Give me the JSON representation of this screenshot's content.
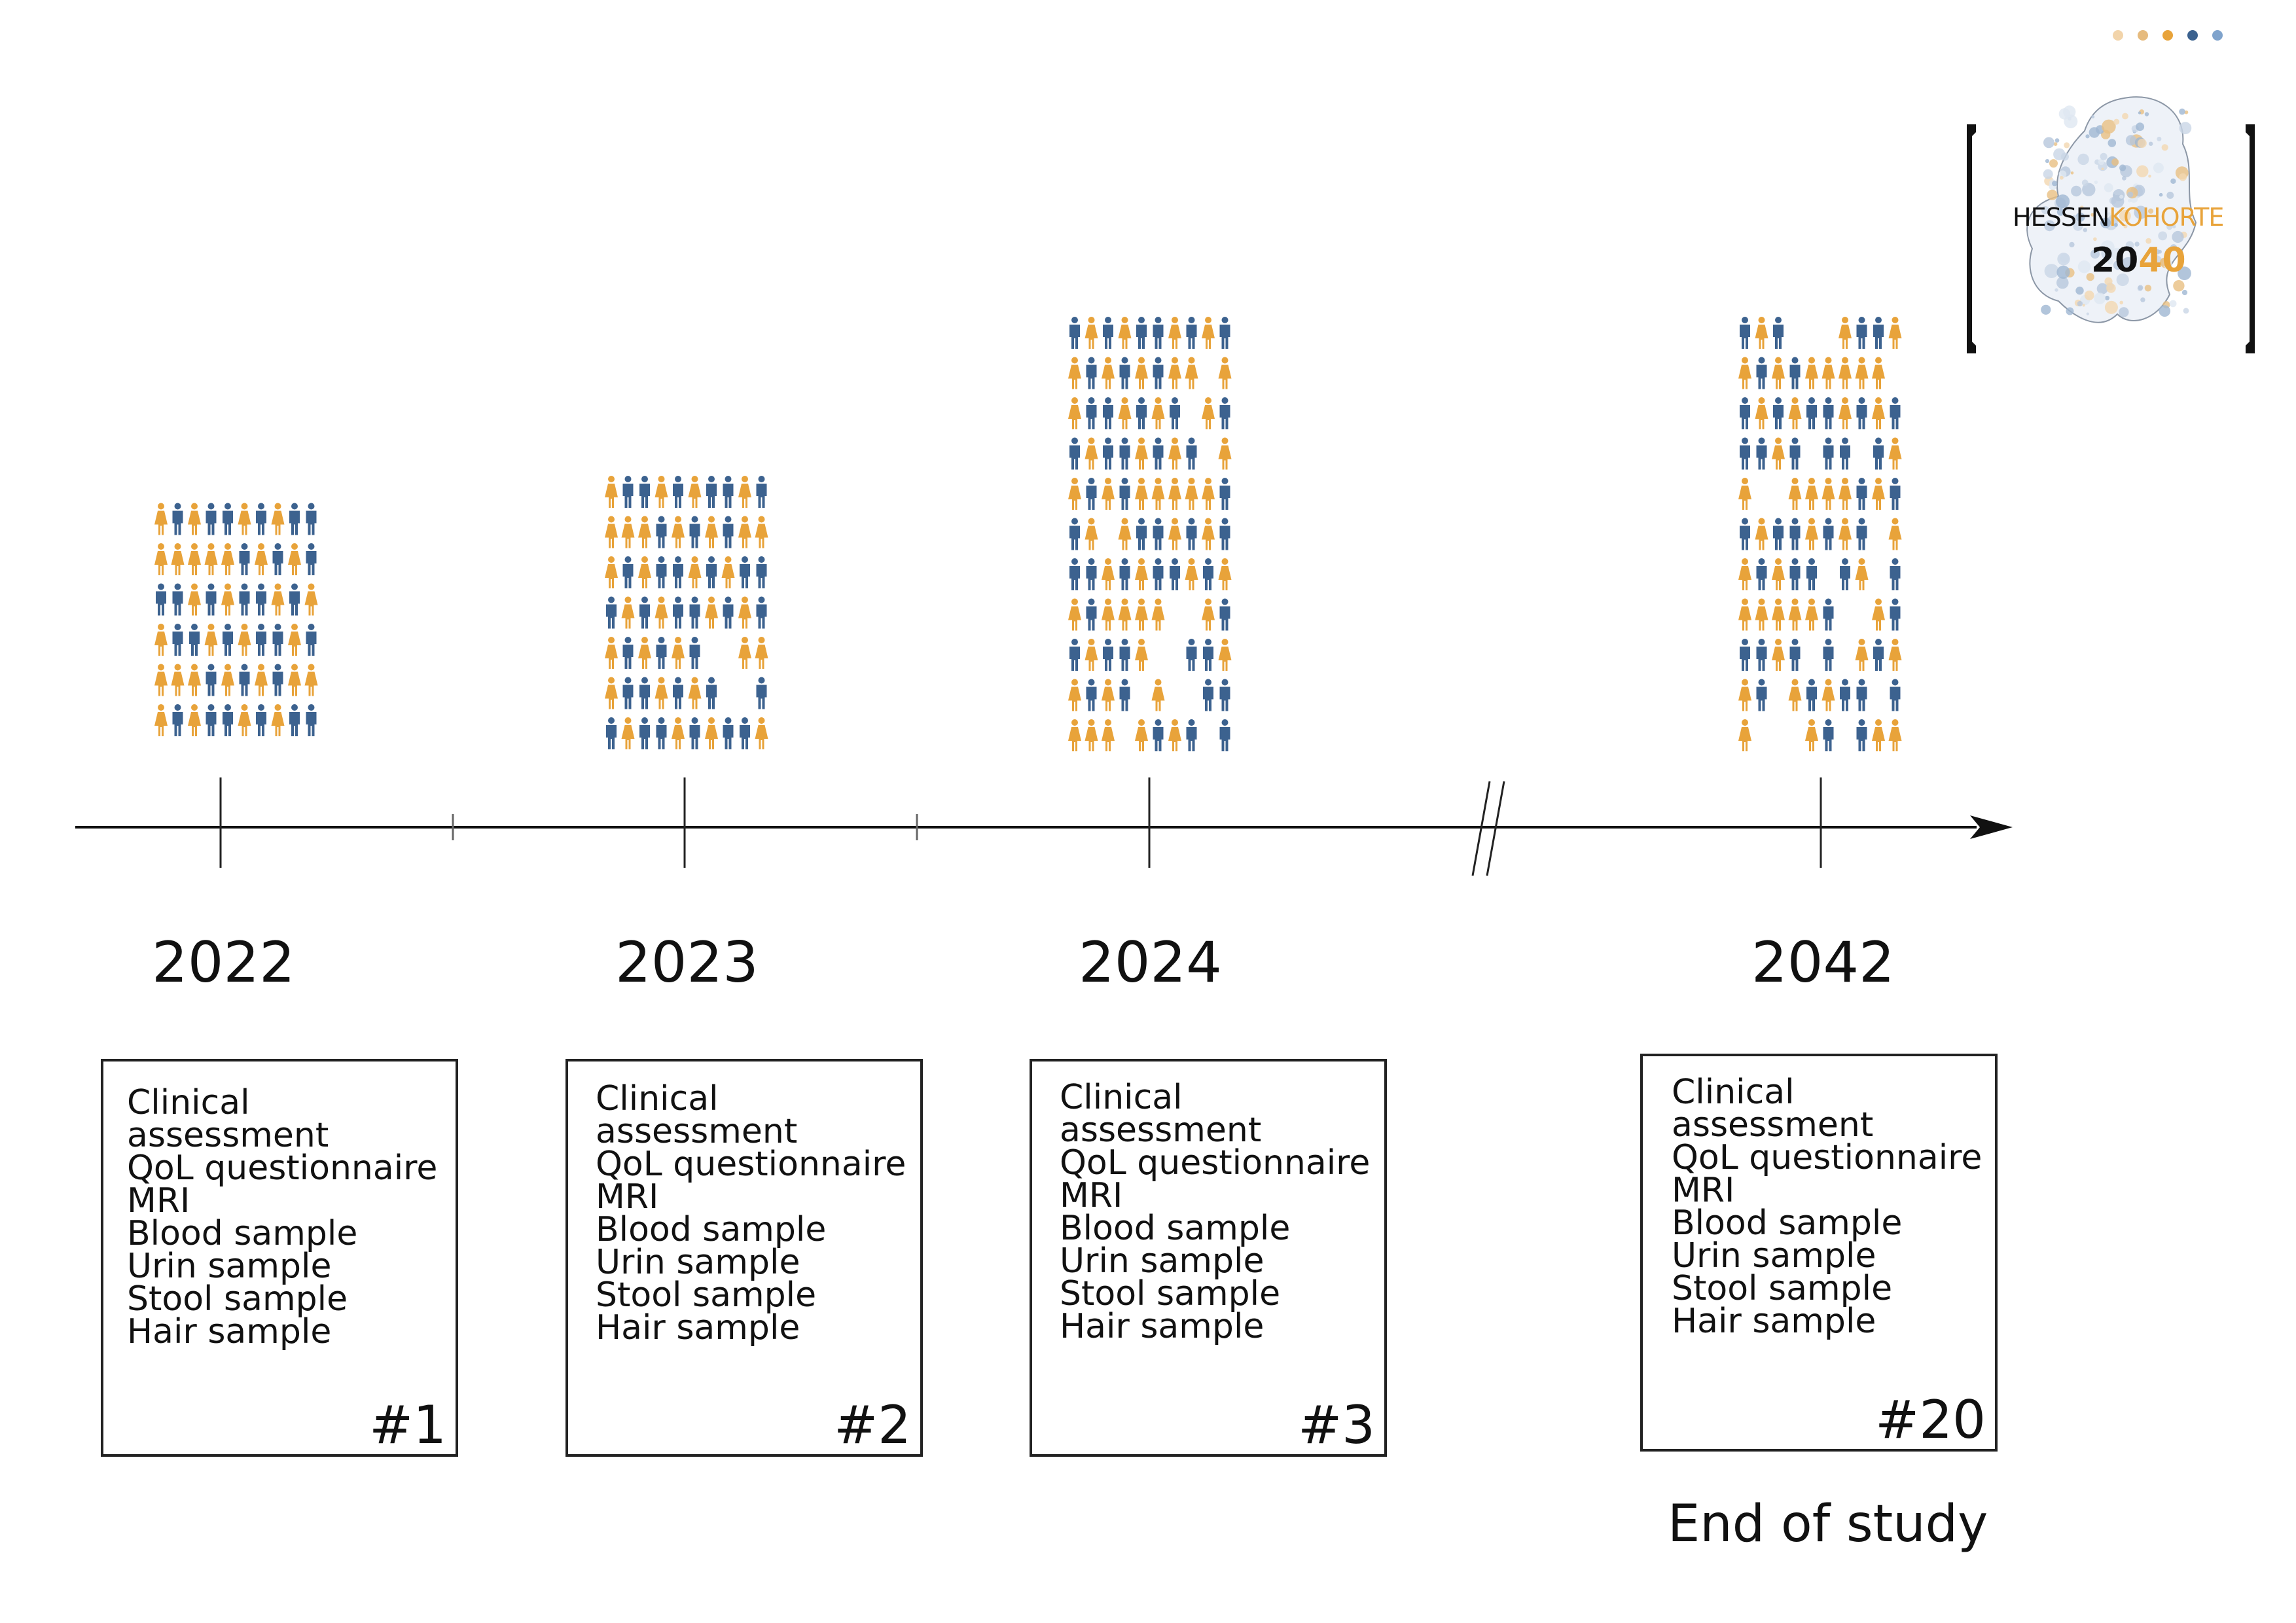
{
  "colors": {
    "female": "#e8a33a",
    "male": "#3c628f",
    "axis": "#111111"
  },
  "timeline": {
    "visits": [
      {
        "year": "2022",
        "label": "#1",
        "grid_rows": 6,
        "grid_cols": 10,
        "items": [
          "Clinical\nassessment",
          "QoL questionnaire",
          "MRI",
          "Blood sample",
          "Urin sample",
          "Stool sample",
          "Hair sample"
        ]
      },
      {
        "year": "2023",
        "label": "#2",
        "grid_rows": 7,
        "grid_cols": 10,
        "items": [
          "Clinical\nassessment",
          "QoL questionnaire",
          "MRI",
          "Blood sample",
          "Urin sample",
          "Stool sample",
          "Hair sample"
        ]
      },
      {
        "year": "2024",
        "label": "#3",
        "grid_rows": 11,
        "grid_cols": 10,
        "items": [
          "Clinical\nassessment",
          "QoL questionnaire",
          "MRI",
          "Blood sample",
          "Urin sample",
          "Stool sample",
          "Hair sample"
        ]
      },
      {
        "year": "2042",
        "label": "#20",
        "grid_rows": 11,
        "grid_cols": 10,
        "items": [
          "Clinical\nassessment",
          "QoL questionnaire",
          "MRI",
          "Blood sample",
          "Urin sample",
          "Stool sample",
          "Hair sample"
        ]
      }
    ],
    "end_label": "End of study"
  },
  "logo": {
    "word_part1": "HESSEN",
    "word_part2": "KOHORTE",
    "year_part1": "20",
    "year_part2": "40",
    "dot_colors": [
      "#f2d4aa",
      "#e6bb7e",
      "#e8a33a",
      "#3c628f",
      "#7fa3cc"
    ]
  }
}
